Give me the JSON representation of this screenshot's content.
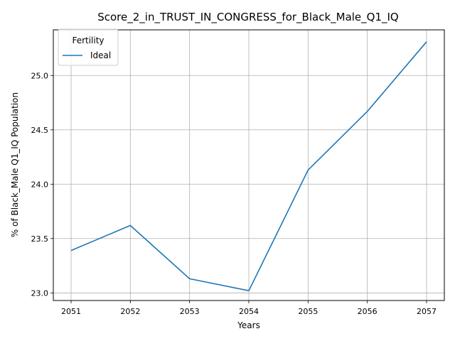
{
  "chart_data": {
    "type": "line",
    "title": "Score_2_in_TRUST_IN_CONGRESS_for_Black_Male_Q1_IQ",
    "xlabel": "Years",
    "ylabel": "% of Black_Male Q1_IQ Population",
    "x": [
      "2051",
      "2052",
      "2053",
      "2054",
      "2055",
      "2056",
      "2057"
    ],
    "y_ticks": [
      "23.0",
      "23.5",
      "24.0",
      "24.5",
      "25.0"
    ],
    "ylim": [
      22.93,
      25.42
    ],
    "grid": true,
    "legend": {
      "title": "Fertility",
      "placement": "top-left"
    },
    "series": [
      {
        "name": "Ideal",
        "color": "#1f77b4",
        "values": [
          23.39,
          23.62,
          23.13,
          23.02,
          24.13,
          24.67,
          25.31
        ]
      }
    ]
  }
}
